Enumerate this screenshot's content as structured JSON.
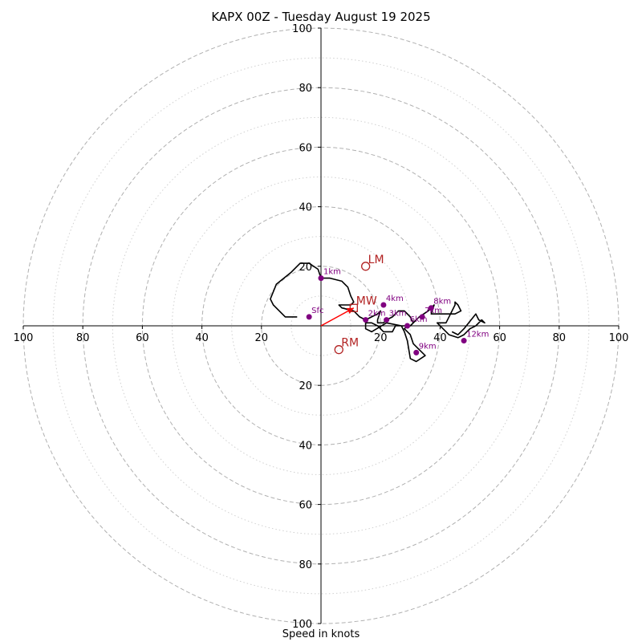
{
  "chart_data": {
    "type": "scatter",
    "subtype": "hodograph",
    "title": "KAPX 00Z - Tuesday August 19 2025",
    "xlabel": "Speed in knots",
    "ylabel": "",
    "xlim": [
      -100,
      100
    ],
    "ylim": [
      -100,
      100
    ],
    "rings_major": [
      20,
      40,
      60,
      80,
      100
    ],
    "rings_minor": [
      10,
      30,
      50,
      70,
      90
    ],
    "tick_labels": [
      "20",
      "40",
      "60",
      "80",
      "100"
    ],
    "grid": true,
    "colors": {
      "trace": "#000000",
      "height_markers": "#800080",
      "motion": "#b22222",
      "mean_wind_arrow": "#ff0000",
      "grid": "#b0b0b0"
    },
    "trace": [
      [
        -8,
        3
      ],
      [
        -12,
        3
      ],
      [
        -16,
        7
      ],
      [
        -17,
        9
      ],
      [
        -15,
        14
      ],
      [
        -10,
        18
      ],
      [
        -7,
        21
      ],
      [
        -4,
        21
      ],
      [
        -1,
        19
      ],
      [
        0,
        16
      ],
      [
        3,
        16
      ],
      [
        7,
        15
      ],
      [
        9,
        13
      ],
      [
        10,
        10
      ],
      [
        11,
        8
      ],
      [
        10,
        7
      ],
      [
        6,
        7
      ],
      [
        7,
        6
      ],
      [
        11,
        5
      ],
      [
        13,
        3
      ],
      [
        15,
        2
      ],
      [
        17,
        3
      ],
      [
        19,
        4
      ],
      [
        20,
        5
      ],
      [
        19,
        2
      ],
      [
        19,
        1
      ],
      [
        21,
        1
      ],
      [
        22,
        2
      ],
      [
        24,
        3
      ],
      [
        26,
        5
      ],
      [
        28,
        5
      ],
      [
        30,
        3
      ],
      [
        31,
        1
      ],
      [
        30,
        0
      ],
      [
        29,
        0
      ],
      [
        28,
        -1
      ],
      [
        30,
        -3
      ],
      [
        31,
        -6
      ],
      [
        33,
        -8
      ],
      [
        35,
        -10
      ],
      [
        32,
        -12
      ],
      [
        30,
        -11
      ],
      [
        29,
        -5
      ],
      [
        28,
        -2
      ],
      [
        27,
        0
      ],
      [
        25,
        0
      ],
      [
        24,
        -2
      ],
      [
        21,
        -2
      ],
      [
        19,
        0
      ],
      [
        17,
        1
      ],
      [
        15,
        1
      ],
      [
        15,
        -1
      ],
      [
        17,
        -2
      ],
      [
        22,
        1
      ],
      [
        27,
        0
      ],
      [
        30,
        0
      ],
      [
        33,
        3
      ],
      [
        36,
        5
      ],
      [
        37,
        6
      ],
      [
        38,
        7
      ],
      [
        37,
        4
      ],
      [
        41,
        4
      ],
      [
        45,
        4
      ],
      [
        47,
        5
      ],
      [
        46,
        7
      ],
      [
        45,
        8
      ],
      [
        45,
        7
      ],
      [
        42,
        1
      ],
      [
        39,
        1
      ],
      [
        43,
        -3
      ],
      [
        46,
        -4
      ],
      [
        48,
        -3
      ],
      [
        50,
        -1
      ],
      [
        52,
        0
      ],
      [
        54,
        2
      ],
      [
        55,
        1
      ],
      [
        53,
        2
      ],
      [
        52,
        4
      ],
      [
        48,
        -1
      ],
      [
        46,
        -3
      ],
      [
        44,
        -2
      ]
    ],
    "height_points": [
      {
        "label": "Sfc",
        "x": -4,
        "y": 3
      },
      {
        "label": "1km",
        "x": 0,
        "y": 16
      },
      {
        "label": "2km",
        "x": 15,
        "y": 2
      },
      {
        "label": "3km",
        "x": 22,
        "y": 2
      },
      {
        "label": "4km",
        "x": 21,
        "y": 7
      },
      {
        "label": "6km",
        "x": 29,
        "y": 0
      },
      {
        "label": "7km",
        "x": 34,
        "y": 3
      },
      {
        "label": "8km",
        "x": 37,
        "y": 6
      },
      {
        "label": "9km",
        "x": 32,
        "y": -9
      },
      {
        "label": "12km",
        "x": 48,
        "y": -5
      }
    ],
    "storm_motion": [
      {
        "label": "LM",
        "x": 15,
        "y": 20,
        "marker": "circle"
      },
      {
        "label": "MW",
        "x": 11,
        "y": 6,
        "marker": "square"
      },
      {
        "label": "RM",
        "x": 6,
        "y": -8,
        "marker": "circle"
      }
    ],
    "mean_wind_vector": {
      "from": [
        0,
        0
      ],
      "to": [
        11,
        6
      ]
    }
  }
}
